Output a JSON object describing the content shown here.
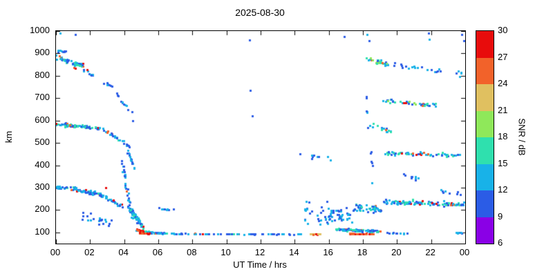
{
  "chart_data": {
    "type": "scatter",
    "title": "2025-08-30",
    "xlabel": "UT Time / hrs",
    "ylabel": "km",
    "x_range": [
      0,
      24
    ],
    "y_range": [
      50,
      1000
    ],
    "grid": false,
    "point_size": 3,
    "seed": 20250830,
    "x_ticks": [
      {
        "label": "00",
        "value": 0
      },
      {
        "label": "02",
        "value": 2
      },
      {
        "label": "04",
        "value": 4
      },
      {
        "label": "06",
        "value": 6
      },
      {
        "label": "08",
        "value": 8
      },
      {
        "label": "10",
        "value": 10
      },
      {
        "label": "12",
        "value": 12
      },
      {
        "label": "14",
        "value": 14
      },
      {
        "label": "16",
        "value": 16
      },
      {
        "label": "18",
        "value": 18
      },
      {
        "label": "20",
        "value": 20
      },
      {
        "label": "22",
        "value": 22
      },
      {
        "label": "00",
        "value": 24
      }
    ],
    "y_ticks": [
      100,
      200,
      300,
      400,
      500,
      600,
      700,
      800,
      900,
      1000
    ],
    "colorbar": {
      "label": "SNR / dB",
      "range": [
        6,
        30
      ],
      "ticks": [
        6,
        9,
        12,
        15,
        18,
        21,
        24,
        27,
        30
      ],
      "colors": [
        "#8a00e6",
        "#2b5ce6",
        "#18b2e8",
        "#2fe0ae",
        "#8fe85a",
        "#e0c060",
        "#f2622a",
        "#e80c0c"
      ]
    },
    "clusters": [
      {
        "x": [
          0.0,
          1.6
        ],
        "y": [
          885,
          845
        ],
        "spread": 16,
        "n": 55,
        "snr": [
          9,
          18
        ],
        "hot": 0.05
      },
      {
        "x": [
          0.05,
          0.6
        ],
        "y": [
          915,
          905
        ],
        "spread": 10,
        "n": 8,
        "snr": [
          9,
          15
        ],
        "hot": 0
      },
      {
        "x": [
          1.6,
          2.4
        ],
        "y": [
          830,
          790
        ],
        "spread": 14,
        "n": 10,
        "snr": [
          9,
          15
        ],
        "hot": 0.05
      },
      {
        "x": [
          2.4,
          3.3
        ],
        "y": [
          780,
          755
        ],
        "spread": 10,
        "n": 7,
        "snr": [
          9,
          14
        ],
        "hot": 0
      },
      {
        "x": [
          3.5,
          4.3
        ],
        "y": [
          720,
          650
        ],
        "spread": 20,
        "n": 10,
        "snr": [
          9,
          14
        ],
        "hot": 0
      },
      {
        "x": [
          0.0,
          2.8
        ],
        "y": [
          585,
          565
        ],
        "spread": 11,
        "n": 75,
        "snr": [
          9,
          18
        ],
        "hot": 0.1
      },
      {
        "x": [
          2.8,
          4.3
        ],
        "y": [
          560,
          485
        ],
        "spread": 12,
        "n": 28,
        "snr": [
          9,
          16
        ],
        "hot": 0.08
      },
      {
        "x": [
          4.15,
          4.6
        ],
        "y": [
          470,
          390
        ],
        "spread": 25,
        "n": 16,
        "snr": [
          9,
          14
        ],
        "hot": 0
      },
      {
        "x": [
          0.0,
          1.2
        ],
        "y": [
          302,
          296
        ],
        "spread": 13,
        "n": 32,
        "snr": [
          9,
          16
        ],
        "hot": 0.03
      },
      {
        "x": [
          1.2,
          2.6
        ],
        "y": [
          290,
          272
        ],
        "spread": 12,
        "n": 48,
        "snr": [
          9,
          18
        ],
        "hot": 0.12
      },
      {
        "x": [
          2.6,
          4.0
        ],
        "y": [
          268,
          212
        ],
        "spread": 12,
        "n": 36,
        "snr": [
          9,
          16
        ],
        "hot": 0.04
      },
      {
        "x": [
          3.85,
          4.5
        ],
        "y": [
          420,
          160
        ],
        "spread": 70,
        "n": 34,
        "snr": [
          9,
          14
        ],
        "hot": 0.02
      },
      {
        "x": [
          4.2,
          5.1
        ],
        "y": [
          215,
          125
        ],
        "spread": 22,
        "n": 70,
        "snr": [
          9,
          16
        ],
        "hot": 0.06
      },
      {
        "x": [
          4.7,
          5.6
        ],
        "y": [
          112,
          98
        ],
        "spread": 7,
        "n": 60,
        "snr": [
          9,
          18
        ],
        "hot": 0.2
      },
      {
        "x": [
          4.9,
          5.5
        ],
        "y": [
          97,
          95
        ],
        "spread": 2,
        "n": 25,
        "snr": [
          25,
          30
        ],
        "hot": 0
      },
      {
        "x": [
          5.6,
          6.5
        ],
        "y": [
          100,
          95
        ],
        "spread": 5,
        "n": 30,
        "snr": [
          9,
          16
        ],
        "hot": 0.05
      },
      {
        "x": [
          1.0,
          3.4
        ],
        "y": [
          180,
          140
        ],
        "spread": 45,
        "n": 20,
        "snr": [
          9,
          14
        ],
        "hot": 0
      },
      {
        "x": [
          6.0,
          6.6
        ],
        "y": [
          208,
          202
        ],
        "spread": 6,
        "n": 9,
        "snr": [
          9,
          13
        ],
        "hot": 0
      },
      {
        "x": [
          6.6,
          14.4
        ],
        "y": [
          94,
          92
        ],
        "spread": 3,
        "n": 60,
        "snr": [
          9,
          16
        ],
        "hot": 0.02
      },
      {
        "x": [
          14.5,
          16.2
        ],
        "y": [
          200,
          180
        ],
        "spread": 80,
        "n": 30,
        "snr": [
          9,
          15
        ],
        "hot": 0.03
      },
      {
        "x": [
          14.9,
          15.5
        ],
        "y": [
          93,
          92
        ],
        "spread": 3,
        "n": 10,
        "snr": [
          21,
          29
        ],
        "hot": 0
      },
      {
        "x": [
          15.0,
          16.1
        ],
        "y": [
          440,
          430
        ],
        "spread": 25,
        "n": 8,
        "snr": [
          9,
          14
        ],
        "hot": 0
      },
      {
        "x": [
          16.0,
          17.5
        ],
        "y": [
          190,
          170
        ],
        "spread": 55,
        "n": 38,
        "snr": [
          9,
          15
        ],
        "hot": 0.04
      },
      {
        "x": [
          16.4,
          19.0
        ],
        "y": [
          115,
          105
        ],
        "spread": 10,
        "n": 80,
        "snr": [
          9,
          17
        ],
        "hot": 0.08
      },
      {
        "x": [
          17.2,
          18.6
        ],
        "y": [
          95,
          93
        ],
        "spread": 2,
        "n": 32,
        "snr": [
          25,
          30
        ],
        "hot": 0
      },
      {
        "x": [
          17.4,
          19.1
        ],
        "y": [
          215,
          200
        ],
        "spread": 35,
        "n": 42,
        "snr": [
          9,
          16
        ],
        "hot": 0.06
      },
      {
        "x": [
          18.15,
          18.55
        ],
        "y": [
          700,
          350
        ],
        "spread": 130,
        "n": 12,
        "snr": [
          9,
          14
        ],
        "hot": 0
      },
      {
        "x": [
          19.0,
          24.0
        ],
        "y": [
          238,
          224
        ],
        "spread": 16,
        "n": 95,
        "snr": [
          9,
          17
        ],
        "hot": 0.07
      },
      {
        "x": [
          19.0,
          23.7
        ],
        "y": [
          458,
          444
        ],
        "spread": 16,
        "n": 58,
        "snr": [
          9,
          17
        ],
        "hot": 0.07
      },
      {
        "x": [
          18.4,
          19.7
        ],
        "y": [
          580,
          550
        ],
        "spread": 16,
        "n": 16,
        "snr": [
          9,
          18
        ],
        "hot": 0.1
      },
      {
        "x": [
          19.0,
          22.3
        ],
        "y": [
          692,
          668
        ],
        "spread": 13,
        "n": 40,
        "snr": [
          9,
          19
        ],
        "hot": 0.05
      },
      {
        "x": [
          18.2,
          19.5
        ],
        "y": [
          878,
          852
        ],
        "spread": 18,
        "n": 30,
        "snr": [
          11,
          21
        ],
        "hot": 0.03
      },
      {
        "x": [
          19.6,
          23.8
        ],
        "y": [
          850,
          810
        ],
        "spread": 30,
        "n": 24,
        "snr": [
          9,
          15
        ],
        "hot": 0.03
      },
      {
        "x": [
          19.8,
          21.5
        ],
        "y": [
          370,
          330
        ],
        "spread": 25,
        "n": 9,
        "snr": [
          9,
          14
        ],
        "hot": 0
      },
      {
        "x": [
          22.4,
          23.9
        ],
        "y": [
          290,
          270
        ],
        "spread": 15,
        "n": 8,
        "snr": [
          9,
          14
        ],
        "hot": 0
      },
      {
        "x": [
          19.0,
          20.6
        ],
        "y": [
          98,
          95
        ],
        "spread": 4,
        "n": 10,
        "snr": [
          9,
          15
        ],
        "hot": 0
      },
      {
        "x": [
          23.4,
          24.0
        ],
        "y": [
          100,
          97
        ],
        "spread": 4,
        "n": 7,
        "snr": [
          9,
          15
        ],
        "hot": 0.1
      }
    ],
    "points": [
      [
        0.25,
        990,
        12
      ],
      [
        1.15,
        985,
        10
      ],
      [
        1.05,
        835,
        26
      ],
      [
        1.15,
        832,
        28
      ],
      [
        2.9,
        300,
        29
      ],
      [
        0.9,
        292,
        24
      ],
      [
        3.0,
        546,
        25
      ],
      [
        4.45,
        640,
        10
      ],
      [
        4.5,
        600,
        10
      ],
      [
        11.35,
        960,
        10
      ],
      [
        11.4,
        735,
        10
      ],
      [
        11.5,
        620,
        10
      ],
      [
        14.3,
        452,
        10
      ],
      [
        16.9,
        975,
        11
      ],
      [
        6.9,
        203,
        11
      ],
      [
        18.25,
        985,
        13
      ],
      [
        18.35,
        958,
        10
      ],
      [
        21.85,
        992,
        10
      ],
      [
        21.9,
        963,
        12
      ],
      [
        23.8,
        986,
        10
      ],
      [
        23.9,
        958,
        10
      ],
      [
        21.5,
        240,
        29
      ],
      [
        23.15,
        224,
        25
      ],
      [
        21.8,
        452,
        25
      ],
      [
        20.9,
        455,
        24
      ],
      [
        19.35,
        560,
        25
      ],
      [
        19.45,
        690,
        18
      ],
      [
        19.6,
        678,
        17
      ]
    ]
  }
}
